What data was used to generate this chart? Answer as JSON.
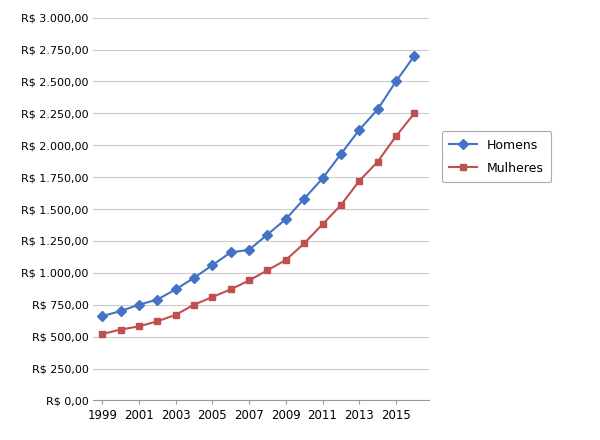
{
  "years": [
    1999,
    2000,
    2001,
    2002,
    2003,
    2004,
    2005,
    2006,
    2007,
    2008,
    2009,
    2010,
    2011,
    2012,
    2013,
    2014,
    2015,
    2016
  ],
  "homens": [
    660,
    700,
    750,
    790,
    870,
    960,
    1060,
    1160,
    1180,
    1300,
    1420,
    1580,
    1740,
    1930,
    2120,
    2280,
    2500,
    2700
  ],
  "mulheres": [
    520,
    555,
    580,
    620,
    670,
    750,
    810,
    870,
    940,
    1020,
    1100,
    1230,
    1380,
    1530,
    1720,
    1870,
    2070,
    2250
  ],
  "homens_color": "#4472C4",
  "mulheres_color": "#C0504D",
  "ylim": [
    0,
    3000
  ],
  "ytick_step": 250,
  "xlabel_years": [
    1999,
    2001,
    2003,
    2005,
    2007,
    2009,
    2011,
    2013,
    2015
  ],
  "legend_homens": "Homens",
  "legend_mulheres": "Mulheres",
  "bg_color": "#FFFFFF",
  "grid_color": "#CCCCCC",
  "marker_homens": "D",
  "marker_mulheres": "s",
  "xmin": 1998.5,
  "xmax": 2016.8
}
